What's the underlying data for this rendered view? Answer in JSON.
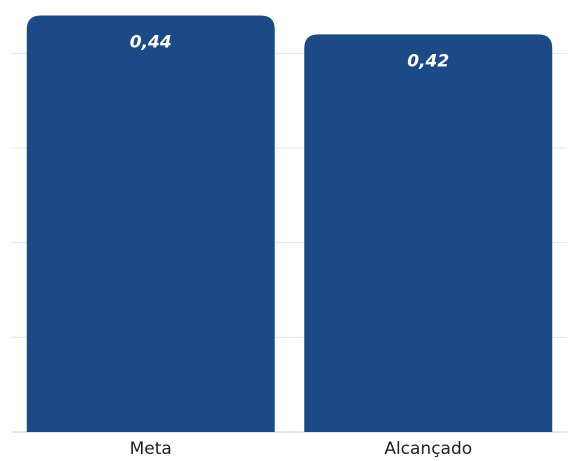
{
  "chart_data": {
    "type": "bar",
    "categories": [
      "Meta",
      "Alcançado"
    ],
    "values": [
      0.44,
      0.42
    ],
    "value_labels": [
      "0,44",
      "0,42"
    ],
    "title": "",
    "xlabel": "",
    "ylabel": "",
    "ylim": [
      0,
      0.45
    ],
    "grid": true,
    "legend": "none",
    "colors": {
      "bar": "#1c4a87",
      "grid": "#e6e6e6",
      "value_label": "#ffffff",
      "tick_label": "#222222"
    }
  }
}
